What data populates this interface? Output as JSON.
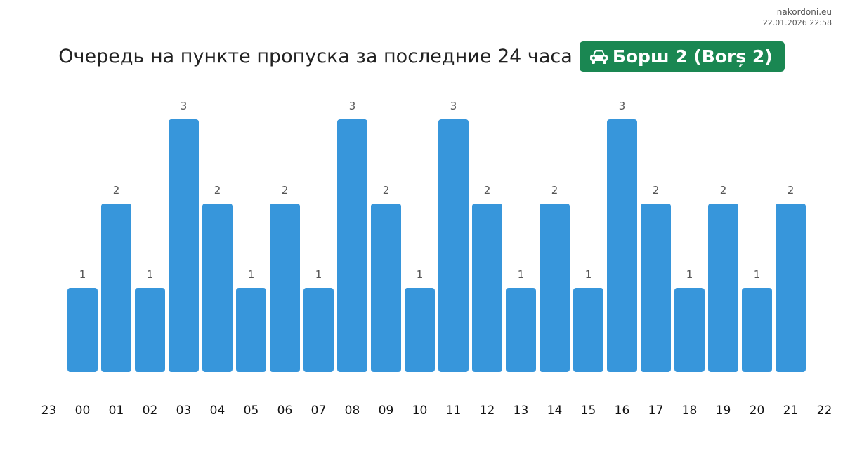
{
  "site": {
    "name": "nakordoni.eu",
    "timestamp": "22.01.2026 22:58"
  },
  "title": "Очередь на пункте пропуска за последние 24 часа",
  "badge": {
    "label": "Борш 2 (Borș 2)",
    "icon": "car-icon",
    "color": "#1a8752"
  },
  "chart_data": {
    "type": "bar",
    "categories": [
      "00",
      "01",
      "02",
      "03",
      "04",
      "05",
      "06",
      "07",
      "08",
      "09",
      "10",
      "11",
      "12",
      "13",
      "14",
      "15",
      "16",
      "17",
      "18",
      "19",
      "20",
      "21"
    ],
    "values": [
      1,
      2,
      1,
      3,
      2,
      1,
      2,
      1,
      3,
      2,
      1,
      3,
      2,
      1,
      2,
      1,
      3,
      2,
      1,
      2,
      1,
      2
    ],
    "x_tick_labels": [
      "23",
      "00",
      "01",
      "02",
      "03",
      "04",
      "05",
      "06",
      "07",
      "08",
      "09",
      "10",
      "11",
      "12",
      "13",
      "14",
      "15",
      "16",
      "17",
      "18",
      "19",
      "20",
      "21",
      "22"
    ],
    "ylim": [
      0,
      3
    ],
    "grid": false,
    "legend": "none",
    "bar_color": "#3796db"
  }
}
